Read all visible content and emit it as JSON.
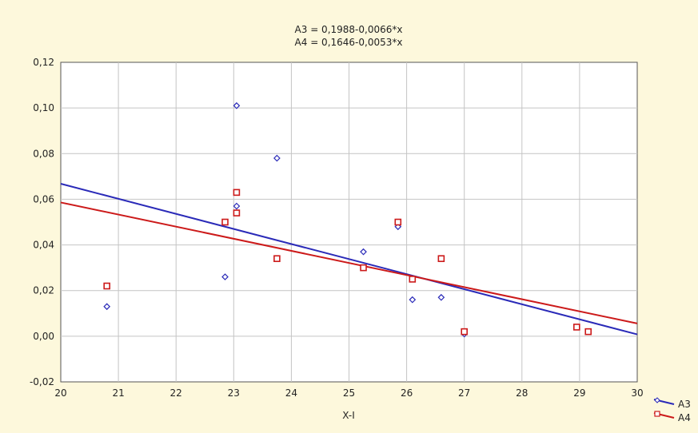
{
  "chart_data": {
    "type": "scatter",
    "equations": [
      "A3 = 0,1988-0,0066*x",
      "A4 = 0,1646-0,0053*x"
    ],
    "xlabel": "X-I",
    "ylabel": "",
    "xlim": [
      20,
      30
    ],
    "ylim": [
      -0.02,
      0.12
    ],
    "x_ticks": [
      "20",
      "21",
      "22",
      "23",
      "24",
      "25",
      "26",
      "27",
      "28",
      "29",
      "30"
    ],
    "y_ticks": [
      "-0,02",
      "0,00",
      "0,02",
      "0,04",
      "0,06",
      "0,08",
      "0,10",
      "0,12"
    ],
    "grid": true,
    "legend_position": "bottom-right",
    "series": [
      {
        "name": "A3",
        "color": "#2a2ab8",
        "marker": "diamond",
        "points": [
          [
            20.8,
            0.013
          ],
          [
            22.85,
            0.026
          ],
          [
            23.05,
            0.101
          ],
          [
            23.05,
            0.057
          ],
          [
            23.75,
            0.078
          ],
          [
            25.25,
            0.037
          ],
          [
            25.85,
            0.048
          ],
          [
            26.1,
            0.016
          ],
          [
            26.6,
            0.017
          ],
          [
            27.0,
            0.001
          ]
        ],
        "fit": {
          "intercept": 0.1988,
          "slope": -0.0066
        }
      },
      {
        "name": "A4",
        "color": "#cc1a1a",
        "marker": "square",
        "points": [
          [
            20.8,
            0.022
          ],
          [
            22.85,
            0.05
          ],
          [
            23.05,
            0.063
          ],
          [
            23.05,
            0.054
          ],
          [
            23.75,
            0.034
          ],
          [
            25.25,
            0.03
          ],
          [
            25.85,
            0.05
          ],
          [
            26.1,
            0.025
          ],
          [
            26.6,
            0.034
          ],
          [
            27.0,
            0.002
          ],
          [
            28.95,
            0.004
          ],
          [
            29.15,
            0.002
          ]
        ],
        "fit": {
          "intercept": 0.1646,
          "slope": -0.0053
        }
      }
    ]
  }
}
